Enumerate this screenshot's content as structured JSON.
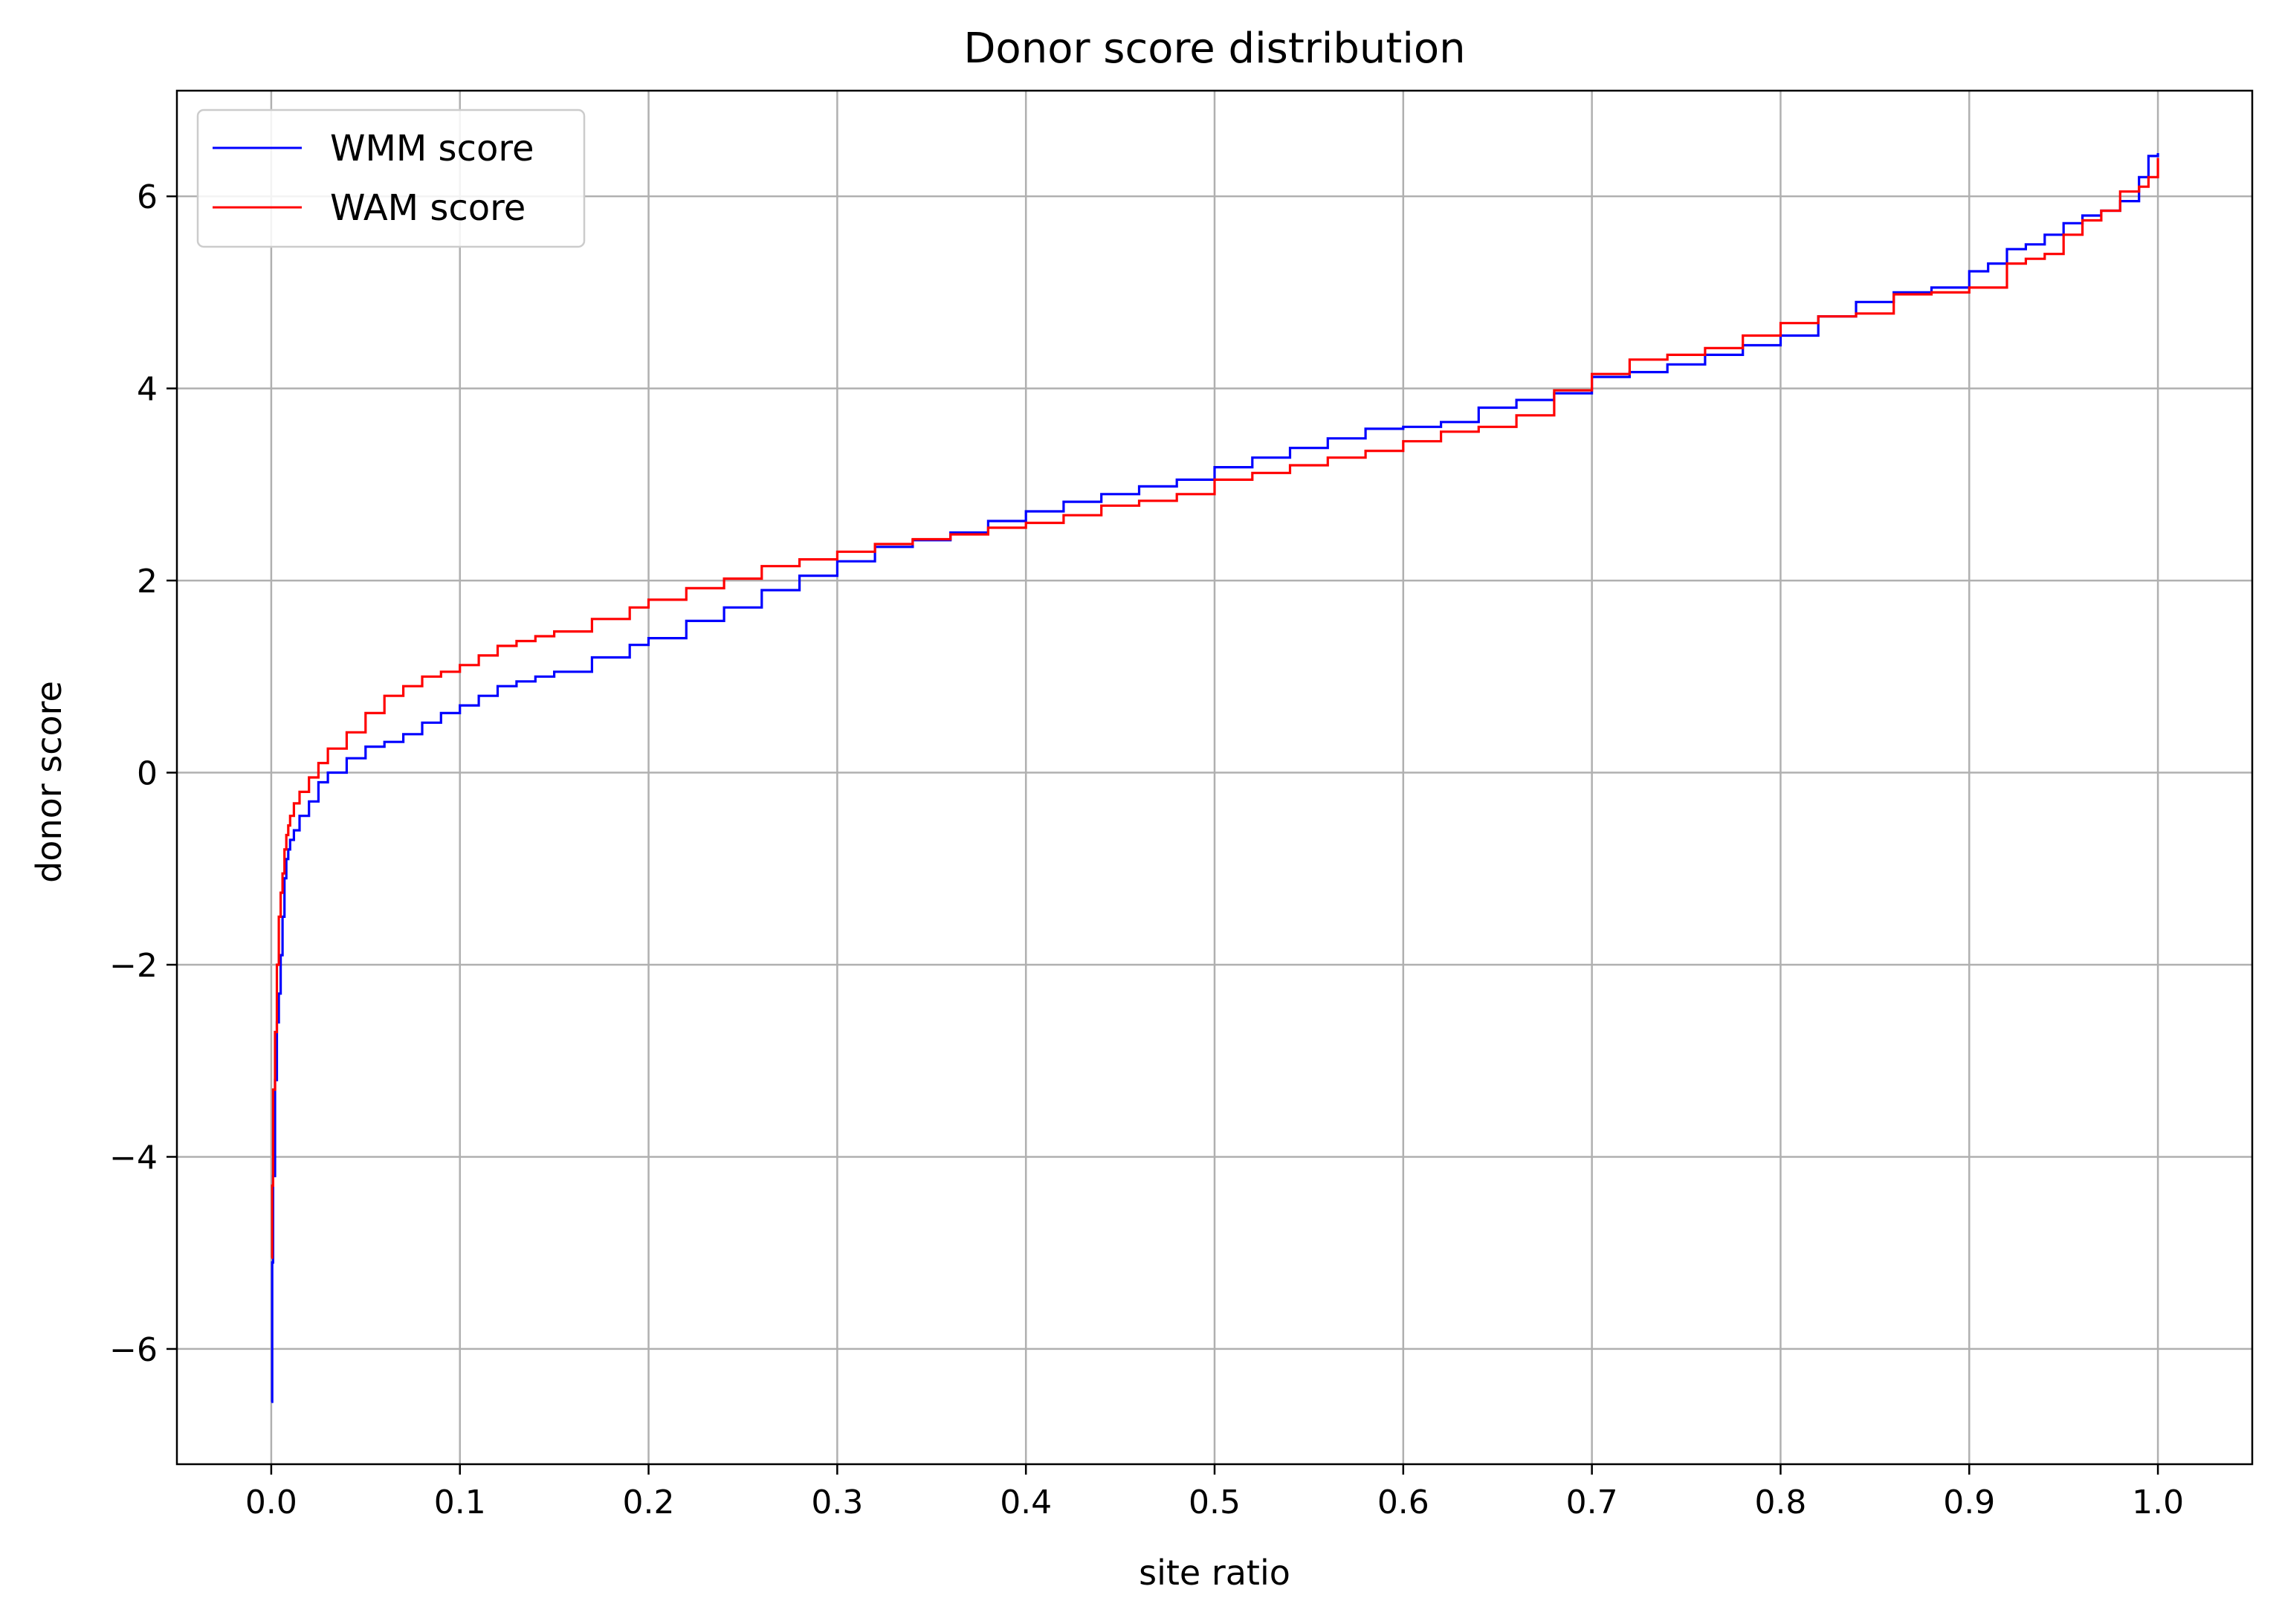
{
  "chart_data": {
    "type": "line",
    "title": "Donor score distribution",
    "xlabel": "site ratio",
    "ylabel": "donor score",
    "xlim": [
      -0.05,
      1.05
    ],
    "ylim": [
      -7.2,
      7.1
    ],
    "xticks": [
      0.0,
      0.1,
      0.2,
      0.3,
      0.4,
      0.5,
      0.6,
      0.7,
      0.8,
      0.9,
      1.0
    ],
    "xtick_labels": [
      "0.0",
      "0.1",
      "0.2",
      "0.3",
      "0.4",
      "0.5",
      "0.6",
      "0.7",
      "0.8",
      "0.9",
      "1.0"
    ],
    "yticks": [
      -6,
      -4,
      -2,
      0,
      2,
      4,
      6
    ],
    "ytick_labels": [
      "−6",
      "−4",
      "−2",
      "0",
      "2",
      "4",
      "6"
    ],
    "grid": true,
    "legend_position": "top-left",
    "series": [
      {
        "name": "WMM score",
        "color": "#0000ff",
        "x": [
          0.0,
          0.0005,
          0.001,
          0.002,
          0.003,
          0.004,
          0.005,
          0.006,
          0.007,
          0.008,
          0.009,
          0.01,
          0.012,
          0.015,
          0.02,
          0.025,
          0.03,
          0.04,
          0.05,
          0.06,
          0.07,
          0.08,
          0.09,
          0.1,
          0.11,
          0.12,
          0.13,
          0.14,
          0.15,
          0.17,
          0.19,
          0.2,
          0.22,
          0.24,
          0.26,
          0.28,
          0.3,
          0.32,
          0.34,
          0.36,
          0.38,
          0.4,
          0.42,
          0.44,
          0.46,
          0.48,
          0.5,
          0.52,
          0.54,
          0.56,
          0.58,
          0.6,
          0.62,
          0.64,
          0.66,
          0.68,
          0.7,
          0.72,
          0.74,
          0.76,
          0.78,
          0.8,
          0.82,
          0.84,
          0.86,
          0.88,
          0.9,
          0.91,
          0.92,
          0.93,
          0.94,
          0.95,
          0.96,
          0.97,
          0.98,
          0.99,
          0.995,
          1.0
        ],
        "y": [
          -6.55,
          -5.1,
          -4.2,
          -3.2,
          -2.6,
          -2.3,
          -1.9,
          -1.5,
          -1.1,
          -0.9,
          -0.8,
          -0.7,
          -0.6,
          -0.45,
          -0.3,
          -0.1,
          0.0,
          0.15,
          0.27,
          0.32,
          0.4,
          0.52,
          0.62,
          0.7,
          0.8,
          0.9,
          0.95,
          1.0,
          1.05,
          1.2,
          1.33,
          1.4,
          1.58,
          1.72,
          1.9,
          2.05,
          2.2,
          2.35,
          2.42,
          2.5,
          2.62,
          2.72,
          2.82,
          2.9,
          2.98,
          3.05,
          3.18,
          3.28,
          3.38,
          3.48,
          3.58,
          3.6,
          3.65,
          3.8,
          3.88,
          3.95,
          4.12,
          4.17,
          4.25,
          4.35,
          4.45,
          4.55,
          4.75,
          4.9,
          5.0,
          5.05,
          5.22,
          5.3,
          5.45,
          5.5,
          5.6,
          5.72,
          5.8,
          5.85,
          5.95,
          6.2,
          6.42,
          6.45
        ]
      },
      {
        "name": "WAM score",
        "color": "#ff0000",
        "x": [
          0.0,
          0.0005,
          0.001,
          0.002,
          0.003,
          0.004,
          0.005,
          0.006,
          0.007,
          0.008,
          0.009,
          0.01,
          0.012,
          0.015,
          0.02,
          0.025,
          0.03,
          0.04,
          0.05,
          0.06,
          0.07,
          0.08,
          0.09,
          0.1,
          0.11,
          0.12,
          0.13,
          0.14,
          0.15,
          0.17,
          0.19,
          0.2,
          0.22,
          0.24,
          0.26,
          0.28,
          0.3,
          0.32,
          0.34,
          0.36,
          0.38,
          0.4,
          0.42,
          0.44,
          0.46,
          0.48,
          0.5,
          0.52,
          0.54,
          0.56,
          0.58,
          0.6,
          0.62,
          0.64,
          0.66,
          0.68,
          0.7,
          0.72,
          0.74,
          0.76,
          0.78,
          0.8,
          0.82,
          0.84,
          0.86,
          0.88,
          0.9,
          0.91,
          0.92,
          0.93,
          0.94,
          0.95,
          0.96,
          0.97,
          0.98,
          0.99,
          0.995,
          1.0
        ],
        "y": [
          -5.05,
          -4.3,
          -3.3,
          -2.7,
          -2.0,
          -1.5,
          -1.25,
          -1.05,
          -0.8,
          -0.65,
          -0.55,
          -0.45,
          -0.32,
          -0.2,
          -0.05,
          0.1,
          0.25,
          0.42,
          0.62,
          0.8,
          0.9,
          1.0,
          1.05,
          1.12,
          1.22,
          1.32,
          1.37,
          1.42,
          1.47,
          1.6,
          1.72,
          1.8,
          1.92,
          2.02,
          2.15,
          2.22,
          2.3,
          2.38,
          2.43,
          2.48,
          2.55,
          2.6,
          2.68,
          2.78,
          2.83,
          2.9,
          3.05,
          3.12,
          3.2,
          3.28,
          3.35,
          3.45,
          3.55,
          3.6,
          3.72,
          3.98,
          4.15,
          4.3,
          4.35,
          4.42,
          4.55,
          4.68,
          4.75,
          4.78,
          4.98,
          5.0,
          5.05,
          5.05,
          5.3,
          5.35,
          5.4,
          5.6,
          5.75,
          5.85,
          6.05,
          6.1,
          6.2,
          6.4
        ]
      }
    ]
  }
}
